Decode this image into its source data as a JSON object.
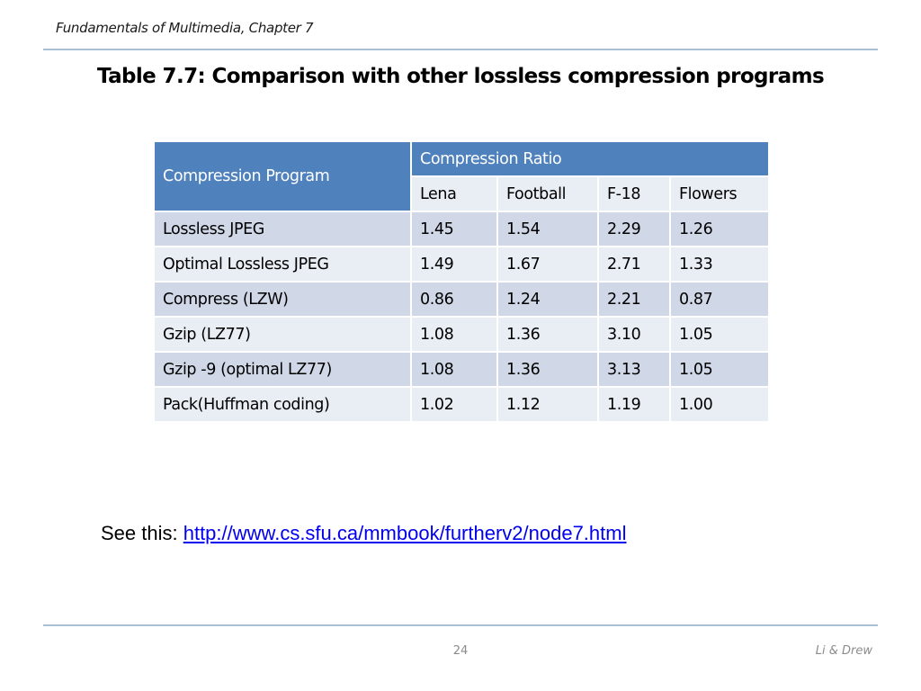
{
  "slide": {
    "header": "Fundamentals of Multimedia, Chapter 7",
    "title": "Table 7.7: Comparison with other lossless compression programs",
    "footer": {
      "page_number": "24",
      "authors": "Li & Drew"
    }
  },
  "table": {
    "header_program": "Compression Program",
    "header_ratio": "Compression Ratio",
    "subheaders": [
      "Lena",
      "Football",
      "F-18",
      "Flowers"
    ],
    "rows": [
      {
        "program": "Lossless JPEG",
        "values": [
          "1.45",
          "1.54",
          "2.29",
          "1.26"
        ]
      },
      {
        "program": "Optimal Lossless JPEG",
        "values": [
          "1.49",
          "1.67",
          "2.71",
          "1.33"
        ]
      },
      {
        "program": "Compress (LZW)",
        "values": [
          "0.86",
          "1.24",
          "2.21",
          "0.87"
        ]
      },
      {
        "program": "Gzip (LZ77)",
        "values": [
          "1.08",
          "1.36",
          "3.10",
          "1.05"
        ]
      },
      {
        "program": "Gzip -9 (optimal LZ77)",
        "values": [
          "1.08",
          "1.36",
          "3.13",
          "1.05"
        ]
      },
      {
        "program": "Pack(Huffman coding)",
        "values": [
          "1.02",
          "1.12",
          "1.19",
          "1.00"
        ]
      }
    ]
  },
  "reference": {
    "prefix": "See this: ",
    "link_text": "http://www.cs.sfu.ca/mmbook/furtherv2/node7.html",
    "link_url": "http://www.cs.sfu.ca/mmbook/furtherv2/node7.html"
  },
  "colors": {
    "header_fill": "#4f81bd",
    "row_dark": "#d0d8e8",
    "row_light": "#e9edf4",
    "rule": "#a9bfd3",
    "link": "#0000ee"
  }
}
